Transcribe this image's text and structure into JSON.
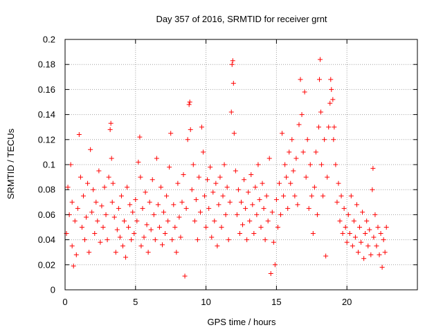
{
  "chart_data": {
    "type": "scatter",
    "title": "Day 357 of 2016, SRMTID for receiver grnt",
    "xlabel": "GPS time / hours",
    "ylabel": "SRMTID / TECUs",
    "xlim": [
      0,
      25
    ],
    "ylim": [
      0,
      0.2
    ],
    "xticks": [
      0,
      5,
      10,
      15,
      20
    ],
    "xtick_labels": [
      "0",
      "5",
      "10",
      "15",
      "20"
    ],
    "yticks": [
      0,
      0.02,
      0.04,
      0.06,
      0.08,
      0.1,
      0.12,
      0.14,
      0.16,
      0.18,
      0.2
    ],
    "ytick_labels": [
      "0",
      "0.02",
      "0.04",
      "0.06",
      "0.08",
      "0.1",
      "0.12",
      "0.14",
      "0.16",
      "0.18",
      "0.2"
    ],
    "grid": true,
    "marker": "+",
    "color": "#ff0000",
    "series": [
      {
        "name": "SRMTID",
        "points": [
          [
            0.1,
            0.045
          ],
          [
            0.2,
            0.082
          ],
          [
            0.3,
            0.06
          ],
          [
            0.4,
            0.1
          ],
          [
            0.5,
            0.035
          ],
          [
            0.5,
            0.07
          ],
          [
            0.6,
            0.019
          ],
          [
            0.7,
            0.055
          ],
          [
            0.8,
            0.028
          ],
          [
            0.9,
            0.065
          ],
          [
            1.0,
            0.124
          ],
          [
            1.1,
            0.09
          ],
          [
            1.2,
            0.05
          ],
          [
            1.3,
            0.075
          ],
          [
            1.4,
            0.04
          ],
          [
            1.5,
            0.058
          ],
          [
            1.6,
            0.085
          ],
          [
            1.7,
            0.03
          ],
          [
            1.8,
            0.112
          ],
          [
            1.9,
            0.062
          ],
          [
            2.0,
            0.08
          ],
          [
            2.1,
            0.045
          ],
          [
            2.2,
            0.07
          ],
          [
            2.3,
            0.055
          ],
          [
            2.4,
            0.095
          ],
          [
            2.5,
            0.038
          ],
          [
            2.6,
            0.067
          ],
          [
            2.7,
            0.05
          ],
          [
            2.8,
            0.082
          ],
          [
            2.9,
            0.06
          ],
          [
            3.0,
            0.04
          ],
          [
            3.1,
            0.09
          ],
          [
            3.2,
            0.128
          ],
          [
            3.25,
            0.133
          ],
          [
            3.3,
            0.105
          ],
          [
            3.35,
            0.07
          ],
          [
            3.4,
            0.085
          ],
          [
            3.5,
            0.058
          ],
          [
            3.6,
            0.03
          ],
          [
            3.7,
            0.048
          ],
          [
            3.8,
            0.065
          ],
          [
            3.9,
            0.042
          ],
          [
            4.0,
            0.075
          ],
          [
            4.1,
            0.035
          ],
          [
            4.2,
            0.055
          ],
          [
            4.3,
            0.026
          ],
          [
            4.4,
            0.082
          ],
          [
            4.5,
            0.05
          ],
          [
            4.6,
            0.068
          ],
          [
            4.7,
            0.04
          ],
          [
            4.8,
            0.062
          ],
          [
            4.9,
            0.045
          ],
          [
            5.0,
            0.072
          ],
          [
            5.1,
            0.055
          ],
          [
            5.2,
            0.102
          ],
          [
            5.3,
            0.122
          ],
          [
            5.35,
            0.09
          ],
          [
            5.4,
            0.035
          ],
          [
            5.5,
            0.065
          ],
          [
            5.6,
            0.042
          ],
          [
            5.7,
            0.078
          ],
          [
            5.8,
            0.052
          ],
          [
            5.9,
            0.03
          ],
          [
            6.0,
            0.07
          ],
          [
            6.1,
            0.048
          ],
          [
            6.2,
            0.088
          ],
          [
            6.3,
            0.06
          ],
          [
            6.4,
            0.04
          ],
          [
            6.5,
            0.105
          ],
          [
            6.6,
            0.068
          ],
          [
            6.7,
            0.05
          ],
          [
            6.8,
            0.082
          ],
          [
            6.9,
            0.036
          ],
          [
            7.0,
            0.062
          ],
          [
            7.1,
            0.045
          ],
          [
            7.2,
            0.075
          ],
          [
            7.3,
            0.055
          ],
          [
            7.4,
            0.098
          ],
          [
            7.5,
            0.125
          ],
          [
            7.6,
            0.04
          ],
          [
            7.7,
            0.068
          ],
          [
            7.8,
            0.05
          ],
          [
            7.9,
            0.03
          ],
          [
            8.0,
            0.085
          ],
          [
            8.1,
            0.058
          ],
          [
            8.2,
            0.042
          ],
          [
            8.3,
            0.07
          ],
          [
            8.4,
            0.092
          ],
          [
            8.5,
            0.011
          ],
          [
            8.6,
            0.065
          ],
          [
            8.7,
            0.12
          ],
          [
            8.8,
            0.148
          ],
          [
            8.85,
            0.15
          ],
          [
            8.9,
            0.128
          ],
          [
            9.0,
            0.08
          ],
          [
            9.1,
            0.1
          ],
          [
            9.2,
            0.055
          ],
          [
            9.3,
            0.072
          ],
          [
            9.4,
            0.04
          ],
          [
            9.5,
            0.09
          ],
          [
            9.6,
            0.062
          ],
          [
            9.7,
            0.13
          ],
          [
            9.8,
            0.11
          ],
          [
            9.9,
            0.075
          ],
          [
            10.0,
            0.05
          ],
          [
            10.1,
            0.088
          ],
          [
            10.2,
            0.065
          ],
          [
            10.3,
            0.098
          ],
          [
            10.4,
            0.042
          ],
          [
            10.5,
            0.078
          ],
          [
            10.6,
            0.055
          ],
          [
            10.7,
            0.085
          ],
          [
            10.8,
            0.035
          ],
          [
            10.9,
            0.068
          ],
          [
            11.0,
            0.09
          ],
          [
            11.1,
            0.05
          ],
          [
            11.2,
            0.075
          ],
          [
            11.3,
            0.1
          ],
          [
            11.4,
            0.06
          ],
          [
            11.5,
            0.082
          ],
          [
            11.6,
            0.04
          ],
          [
            11.7,
            0.07
          ],
          [
            11.8,
            0.142
          ],
          [
            11.85,
            0.18
          ],
          [
            11.9,
            0.183
          ],
          [
            11.95,
            0.165
          ],
          [
            12.0,
            0.125
          ],
          [
            12.1,
            0.095
          ],
          [
            12.2,
            0.06
          ],
          [
            12.3,
            0.08
          ],
          [
            12.4,
            0.045
          ],
          [
            12.5,
            0.07
          ],
          [
            12.6,
            0.052
          ],
          [
            12.7,
            0.088
          ],
          [
            12.8,
            0.065
          ],
          [
            12.9,
            0.04
          ],
          [
            13.0,
            0.078
          ],
          [
            13.1,
            0.055
          ],
          [
            13.2,
            0.092
          ],
          [
            13.3,
            0.068
          ],
          [
            13.4,
            0.045
          ],
          [
            13.5,
            0.082
          ],
          [
            13.6,
            0.06
          ],
          [
            13.7,
            0.1
          ],
          [
            13.8,
            0.072
          ],
          [
            13.9,
            0.05
          ],
          [
            14.0,
            0.085
          ],
          [
            14.1,
            0.065
          ],
          [
            14.2,
            0.04
          ],
          [
            14.3,
            0.075
          ],
          [
            14.4,
            0.055
          ],
          [
            14.5,
            0.105
          ],
          [
            14.6,
            0.013
          ],
          [
            14.7,
            0.062
          ],
          [
            14.8,
            0.038
          ],
          [
            14.9,
            0.02
          ],
          [
            15.0,
            0.072
          ],
          [
            15.1,
            0.05
          ],
          [
            15.2,
            0.085
          ],
          [
            15.3,
            0.06
          ],
          [
            15.4,
            0.125
          ],
          [
            15.5,
            0.075
          ],
          [
            15.6,
            0.1
          ],
          [
            15.7,
            0.09
          ],
          [
            15.8,
            0.065
          ],
          [
            15.9,
            0.11
          ],
          [
            16.0,
            0.085
          ],
          [
            16.1,
            0.12
          ],
          [
            16.2,
            0.095
          ],
          [
            16.3,
            0.075
          ],
          [
            16.4,
            0.105
          ],
          [
            16.5,
            0.068
          ],
          [
            16.6,
            0.132
          ],
          [
            16.7,
            0.168
          ],
          [
            16.8,
            0.14
          ],
          [
            16.9,
            0.11
          ],
          [
            17.0,
            0.158
          ],
          [
            17.1,
            0.09
          ],
          [
            17.2,
            0.12
          ],
          [
            17.3,
            0.065
          ],
          [
            17.4,
            0.1
          ],
          [
            17.5,
            0.075
          ],
          [
            17.6,
            0.045
          ],
          [
            17.7,
            0.082
          ],
          [
            17.8,
            0.11
          ],
          [
            17.9,
            0.06
          ],
          [
            18.0,
            0.13
          ],
          [
            18.05,
            0.168
          ],
          [
            18.1,
            0.184
          ],
          [
            18.15,
            0.142
          ],
          [
            18.2,
            0.1
          ],
          [
            18.3,
            0.075
          ],
          [
            18.4,
            0.12
          ],
          [
            18.5,
            0.027
          ],
          [
            18.6,
            0.09
          ],
          [
            18.7,
            0.13
          ],
          [
            18.8,
            0.149
          ],
          [
            18.85,
            0.168
          ],
          [
            18.9,
            0.16
          ],
          [
            19.0,
            0.152
          ],
          [
            19.05,
            0.12
          ],
          [
            19.1,
            0.13
          ],
          [
            19.2,
            0.1
          ],
          [
            19.3,
            0.07
          ],
          [
            19.4,
            0.085
          ],
          [
            19.5,
            0.055
          ],
          [
            19.6,
            0.075
          ],
          [
            19.7,
            0.045
          ],
          [
            19.8,
            0.065
          ],
          [
            19.9,
            0.05
          ],
          [
            20.0,
            0.038
          ],
          [
            20.1,
            0.06
          ],
          [
            20.2,
            0.045
          ],
          [
            20.3,
            0.075
          ],
          [
            20.4,
            0.035
          ],
          [
            20.5,
            0.055
          ],
          [
            20.6,
            0.042
          ],
          [
            20.7,
            0.068
          ],
          [
            20.8,
            0.03
          ],
          [
            20.9,
            0.05
          ],
          [
            21.0,
            0.038
          ],
          [
            21.1,
            0.062
          ],
          [
            21.2,
            0.025
          ],
          [
            21.3,
            0.045
          ],
          [
            21.4,
            0.055
          ],
          [
            21.5,
            0.035
          ],
          [
            21.6,
            0.048
          ],
          [
            21.7,
            0.028
          ],
          [
            21.8,
            0.08
          ],
          [
            21.85,
            0.097
          ],
          [
            21.9,
            0.042
          ],
          [
            22.0,
            0.06
          ],
          [
            22.1,
            0.035
          ],
          [
            22.2,
            0.05
          ],
          [
            22.3,
            0.028
          ],
          [
            22.4,
            0.045
          ],
          [
            22.5,
            0.018
          ],
          [
            22.6,
            0.04
          ],
          [
            22.7,
            0.03
          ],
          [
            22.8,
            0.05
          ]
        ]
      }
    ]
  }
}
